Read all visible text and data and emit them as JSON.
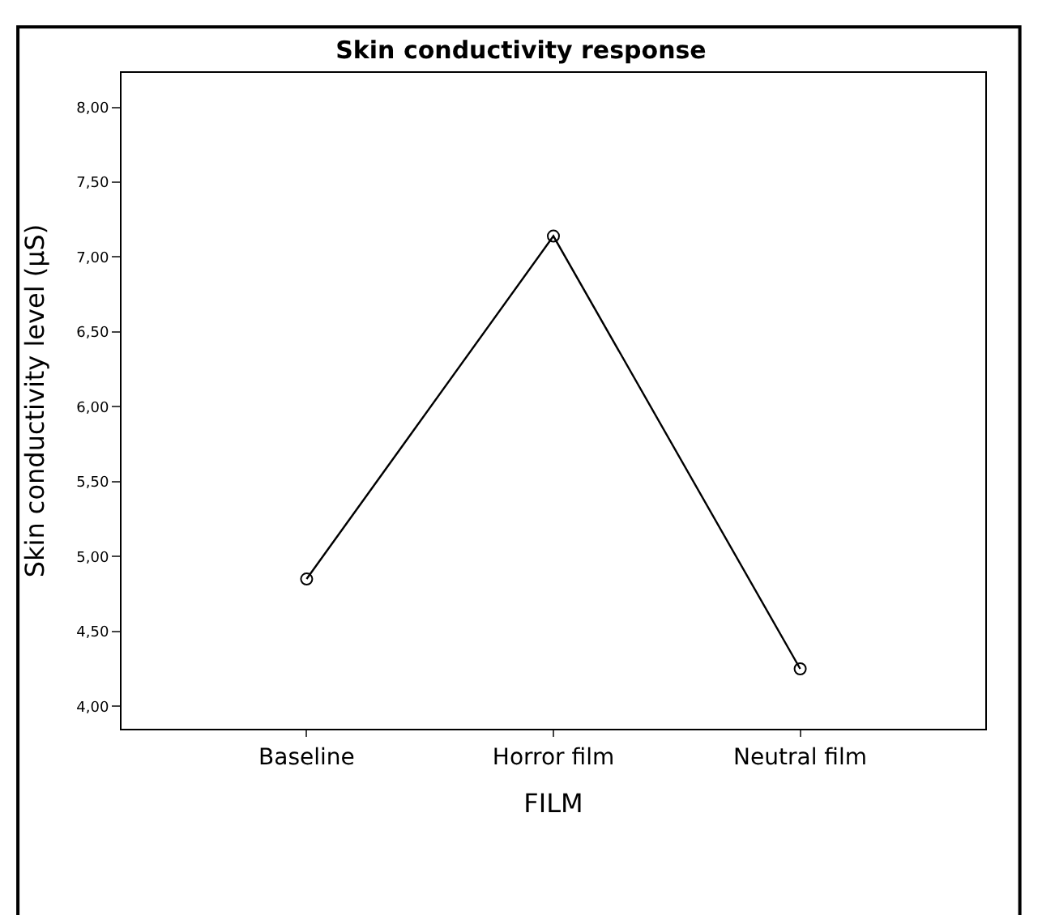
{
  "chart_data": {
    "type": "line",
    "title": "Skin conductivity response",
    "xlabel": "FILM",
    "ylabel": "Skin conductivity level (µS)",
    "categories": [
      "Baseline",
      "Horror film",
      "Neutral film"
    ],
    "series": [
      {
        "color": "#000000",
        "values": [
          4.85,
          7.14,
          4.25
        ]
      }
    ],
    "ylim": [
      3.85,
      8.23
    ],
    "yticks": [
      {
        "value": 4,
        "label": "4,00"
      },
      {
        "value": 4.5,
        "label": "4,50"
      },
      {
        "value": 5,
        "label": "5,00"
      },
      {
        "value": 5.5,
        "label": "5,50"
      },
      {
        "value": 6,
        "label": "6,00"
      },
      {
        "value": 6.5,
        "label": "6,50"
      },
      {
        "value": 7,
        "label": "7,00"
      },
      {
        "value": 7.5,
        "label": "7,50"
      },
      {
        "value": 8,
        "label": "8,00"
      }
    ],
    "marker": "circle",
    "line_style": "solid",
    "grid": false,
    "legend": false
  }
}
